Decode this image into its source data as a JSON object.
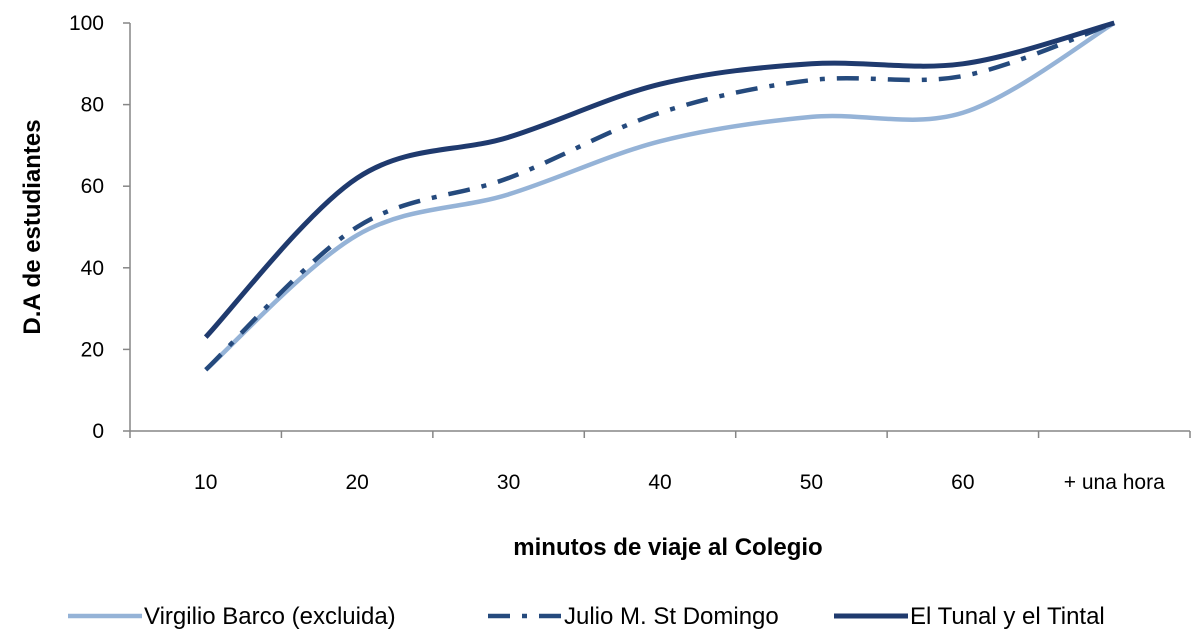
{
  "chart_data": {
    "type": "line",
    "title": "",
    "xlabel": "minutos  de viaje al Colegio",
    "ylabel": "D.A de estudiantes",
    "categories": [
      "10",
      "20",
      "30",
      "40",
      "50",
      "60",
      "+ una hora"
    ],
    "ylim": [
      0,
      100
    ],
    "yticks": [
      "0",
      "20",
      "40",
      "60",
      "80",
      "100"
    ],
    "grid": false,
    "legend_position": "bottom",
    "smooth": true,
    "series": [
      {
        "name": "Virgilio Barco (excluida)",
        "values": [
          15,
          48,
          58,
          71,
          77,
          78,
          100
        ],
        "color": "#95b3d7",
        "style": "solid"
      },
      {
        "name": "Julio M. St Domingo",
        "values": [
          15,
          50,
          62,
          78,
          86,
          87,
          100
        ],
        "color": "#254a7d",
        "style": "dashdot"
      },
      {
        "name": "El Tunal y el Tintal",
        "values": [
          23,
          62,
          72,
          85,
          90,
          90,
          100
        ],
        "color": "#1f3a6e",
        "style": "solid"
      }
    ]
  }
}
